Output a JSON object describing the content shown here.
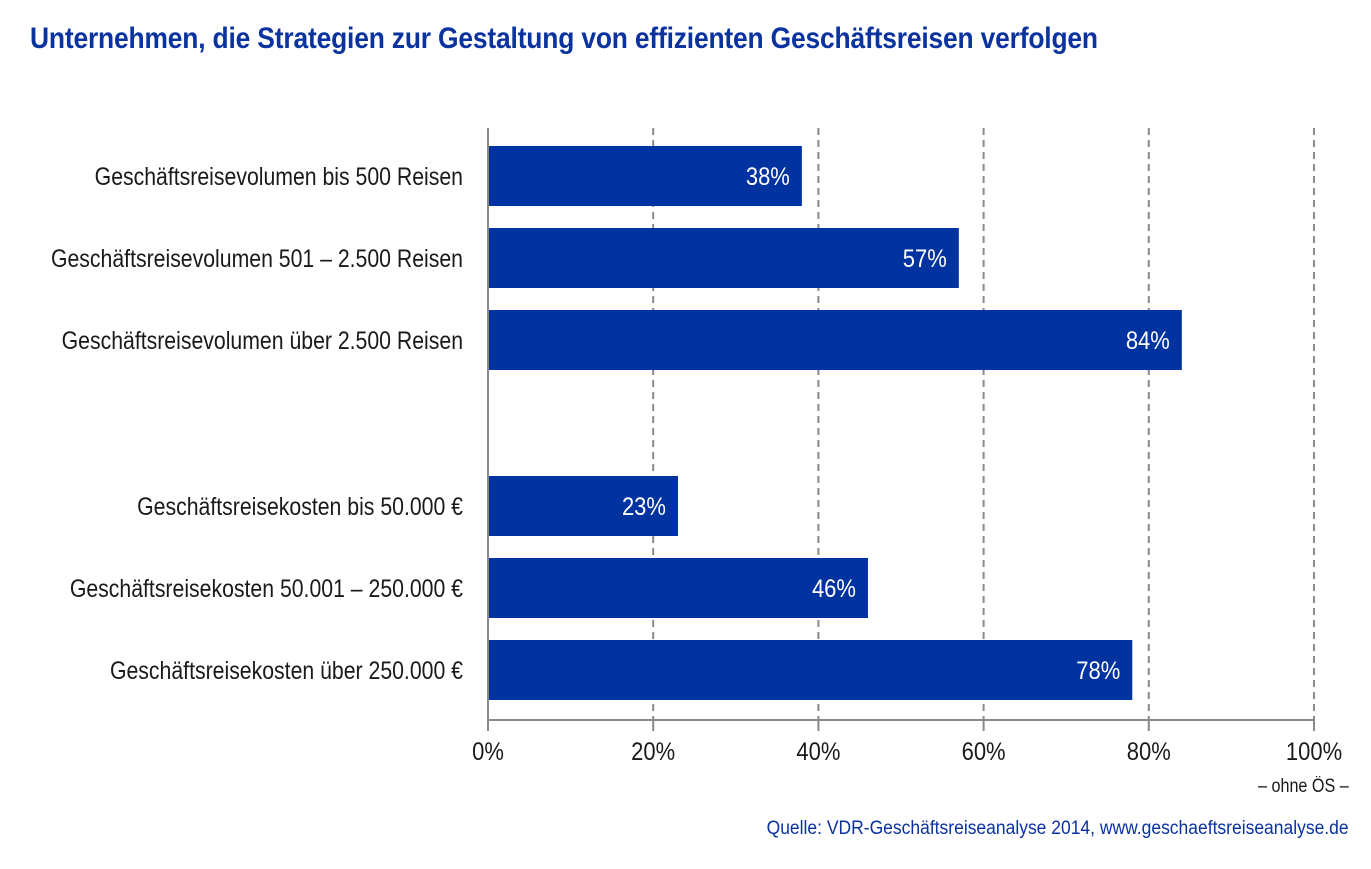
{
  "title": "Unternehmen, die Strategien zur Gestaltung von effizienten Geschäftsreisen verfolgen",
  "note": "– ohne ÖS –",
  "source": "Quelle: VDR-Geschäftsreiseanalyse 2014, www.geschaeftsreiseanalyse.de",
  "colors": {
    "bar": "#0033a0",
    "title": "#0a33a0",
    "axis": "#888888",
    "grid": "#8a8a8a"
  },
  "chart_data": {
    "type": "bar",
    "orientation": "horizontal",
    "groups": [
      {
        "categories": [
          "Geschäftsreisevolumen bis 500 Reisen",
          "Geschäftsreisevolumen 501 – 2.500 Reisen",
          "Geschäftsreisevolumen über 2.500 Reisen"
        ],
        "values": [
          38,
          57,
          84
        ],
        "labels": [
          "38%",
          "57%",
          "84%"
        ]
      },
      {
        "categories": [
          "Geschäftsreisekosten bis 50.000 €",
          "Geschäftsreisekosten 50.001 – 250.000 €",
          "Geschäftsreisekosten über 250.000 €"
        ],
        "values": [
          23,
          46,
          78
        ],
        "labels": [
          "23%",
          "46%",
          "78%"
        ]
      }
    ],
    "xlim": [
      0,
      100
    ],
    "xticks": [
      0,
      20,
      40,
      60,
      80,
      100
    ],
    "xtick_labels": [
      "0%",
      "20%",
      "40%",
      "60%",
      "80%",
      "100%"
    ],
    "grid": "vertical dashed",
    "xlabel": "",
    "ylabel": ""
  }
}
